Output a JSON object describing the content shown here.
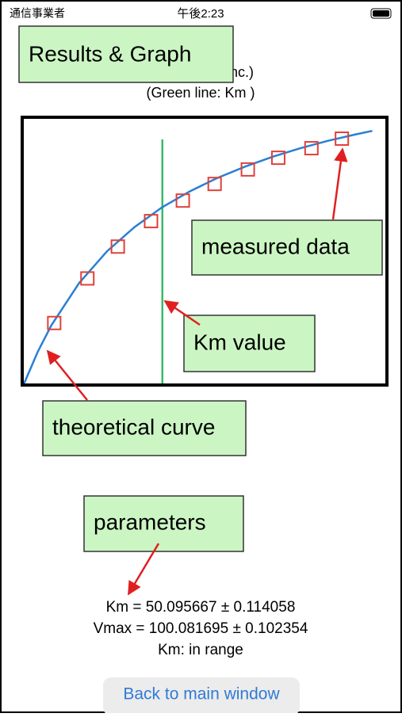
{
  "status_bar": {
    "carrier": "通信事業者",
    "time": "午後2:23"
  },
  "header": {
    "title": "Results & Graph",
    "subtitle_1": "(substrate conc.)",
    "subtitle_2": "(Green line: Km )"
  },
  "chart_data": {
    "type": "scatter",
    "xlim": [
      0,
      131
    ],
    "ylim": [
      0,
      75
    ],
    "series": [
      {
        "name": "measured data",
        "type": "scatter",
        "color": "#e0403a",
        "x": [
          11,
          23,
          34,
          46,
          57.5,
          69,
          81,
          92,
          104,
          115
        ],
        "values": [
          17.3,
          29.9,
          38.9,
          46.1,
          51.9,
          56.6,
          60.7,
          64.0,
          66.7,
          69.4
        ]
      },
      {
        "name": "theoretical curve",
        "type": "line",
        "color": "#2a7fd4",
        "x": [
          0,
          5,
          10,
          20,
          30,
          40,
          50,
          60,
          70,
          80,
          90,
          100,
          110,
          120,
          126
        ],
        "values": [
          0,
          9.1,
          16.7,
          28.6,
          37.5,
          44.4,
          50,
          54.5,
          58.3,
          61.5,
          64.3,
          66.7,
          68.8,
          70.6,
          71.6
        ]
      }
    ],
    "km_line": {
      "name": "Km value",
      "color": "#3cb96a",
      "x": 50.1
    }
  },
  "parameters": {
    "label": "parameters",
    "lines": [
      "Km = 50.095667 ± 0.114058",
      "Vmax = 100.081695 ± 0.102354",
      "Km: in range"
    ]
  },
  "button": {
    "label": "Back to main window"
  }
}
